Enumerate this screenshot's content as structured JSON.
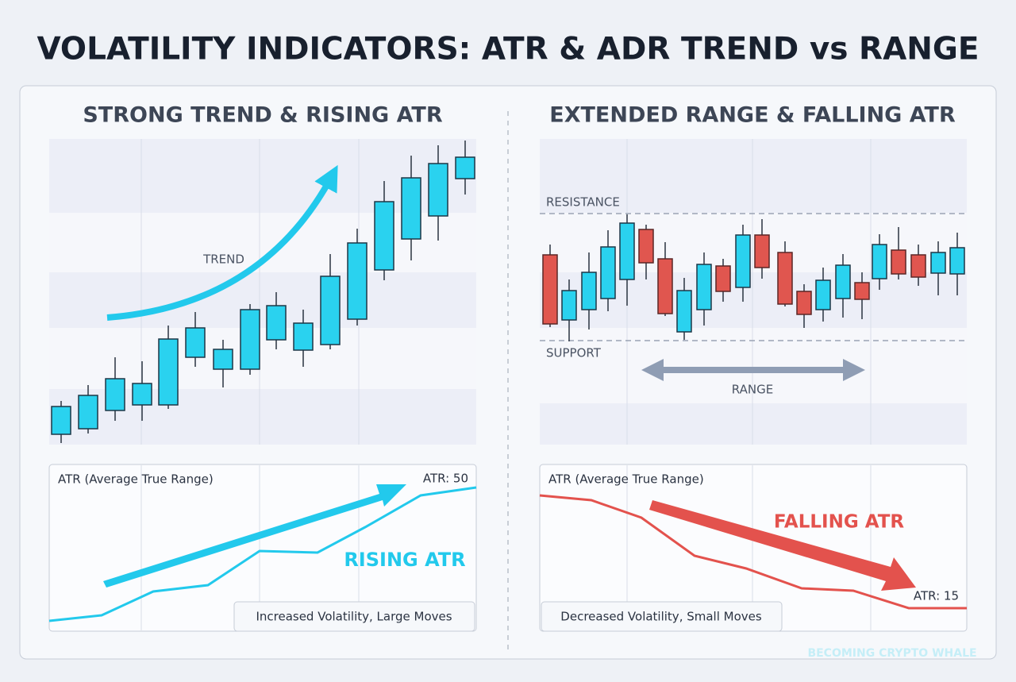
{
  "header": {
    "title": "VOLATILITY INDICATORS: ATR & ADR TREND vs RANGE"
  },
  "panels": [
    {
      "title": "STRONG TREND & RISING ATR",
      "trend_label": "TREND",
      "atr_panel": {
        "label": "ATR (Average True Range)",
        "value_label": "ATR: 50",
        "annotation": "RISING ATR",
        "note": "Increased Volatility, Large Moves"
      }
    },
    {
      "title": "EXTENDED RANGE & FALLING ATR",
      "resistance_label": "RESISTANCE",
      "support_label": "SUPPORT",
      "range_label": "RANGE",
      "atr_panel": {
        "label": "ATR (Average True Range)",
        "value_label": "ATR: 15",
        "annotation": "FALLING ATR",
        "note": "Decreased Volatility, Small Moves"
      }
    }
  ],
  "watermark": "BECOMING CRYPTO WHALE"
}
